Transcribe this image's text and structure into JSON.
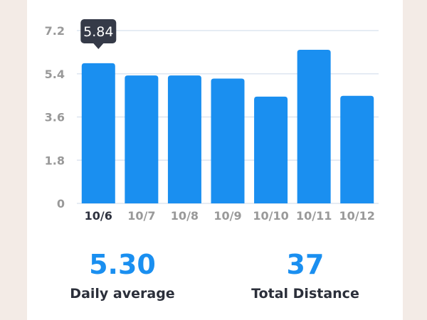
{
  "chart_data": {
    "type": "bar",
    "categories": [
      "10/6",
      "10/7",
      "10/8",
      "10/9",
      "10/10",
      "10/11",
      "10/12"
    ],
    "values": [
      5.84,
      5.33,
      5.33,
      5.2,
      4.45,
      6.4,
      4.48
    ],
    "ylim": [
      0,
      7.2
    ],
    "yticks": [
      "0",
      "1.8",
      "3.6",
      "5.4",
      "7.2"
    ],
    "grid": true,
    "selected_index": 0,
    "tooltip": "5.84"
  },
  "colors": {
    "bar": "#1a8ff0",
    "tooltip": "#353a48",
    "grid": "#dde5f0",
    "background": "#f3ebe6"
  },
  "stats": {
    "daily_average_value": "5.30",
    "daily_average_label": "Daily average",
    "total_distance_value": "37",
    "total_distance_label": "Total Distance"
  }
}
